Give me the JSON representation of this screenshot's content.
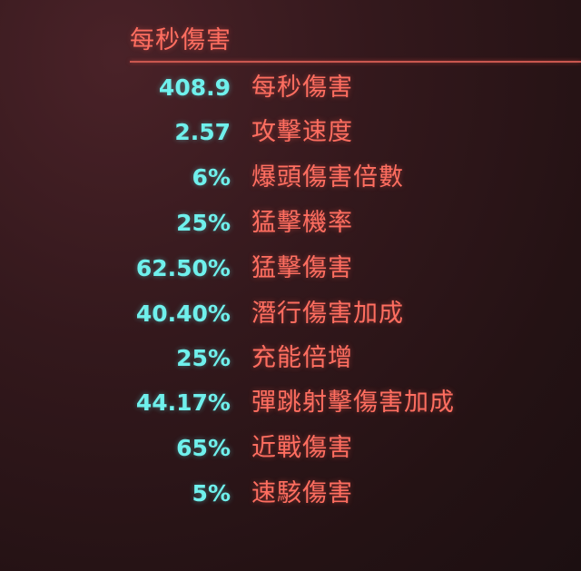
{
  "header": {
    "title": "每秒傷害"
  },
  "colors": {
    "value": "#6ff0ec",
    "label": "#ff6e60",
    "background": "#2a1418"
  },
  "stats": [
    {
      "value": "408.9",
      "label": "每秒傷害"
    },
    {
      "value": "2.57",
      "label": "攻擊速度"
    },
    {
      "value": "6%",
      "label": "爆頭傷害倍數"
    },
    {
      "value": "25%",
      "label": "猛擊機率"
    },
    {
      "value": "62.50%",
      "label": "猛擊傷害"
    },
    {
      "value": "40.40%",
      "label": "潛行傷害加成"
    },
    {
      "value": "25%",
      "label": "充能倍增"
    },
    {
      "value": "44.17%",
      "label": "彈跳射擊傷害加成"
    },
    {
      "value": "65%",
      "label": "近戰傷害"
    },
    {
      "value": "5%",
      "label": "速駭傷害"
    }
  ]
}
